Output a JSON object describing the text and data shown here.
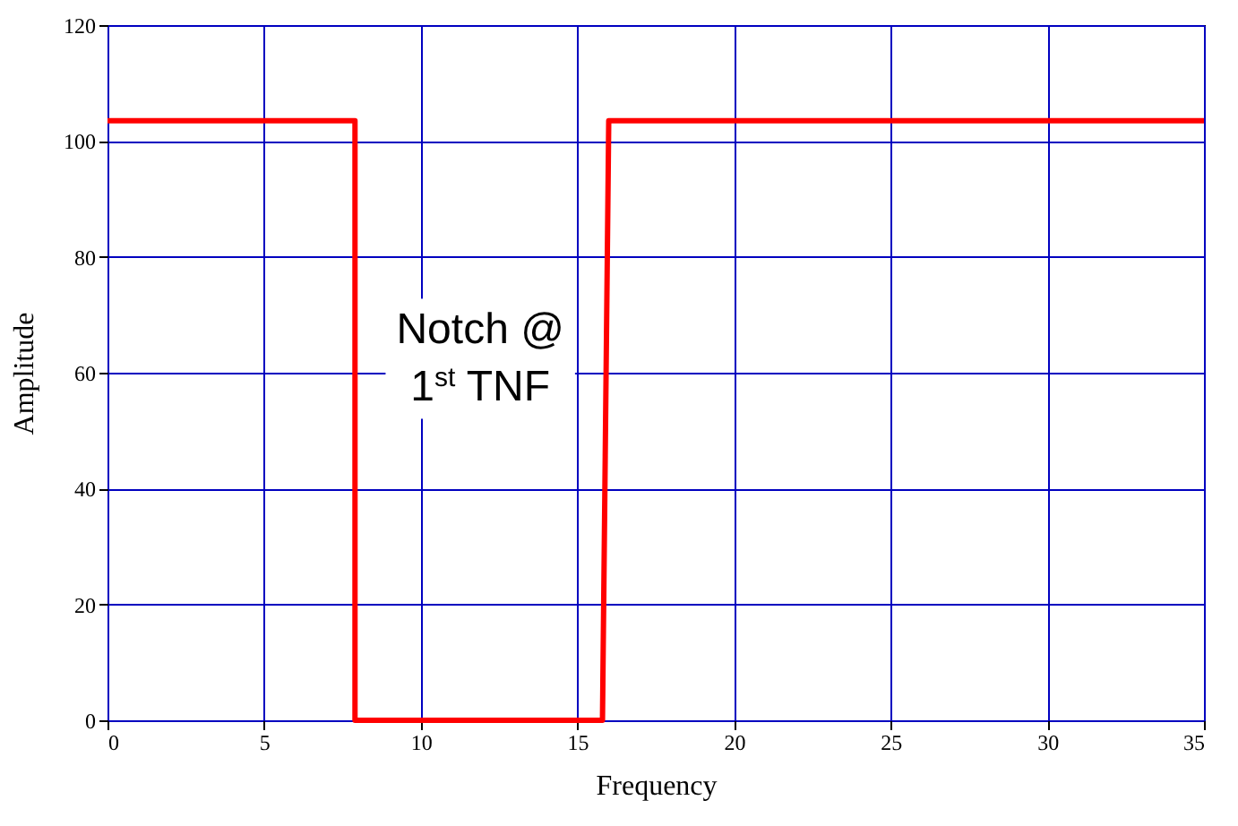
{
  "chart_data": {
    "type": "line",
    "xlabel": "Frequency",
    "ylabel": "Amplitude",
    "x": [
      0,
      7.9,
      7.9,
      15.8,
      16,
      35
    ],
    "series": [
      {
        "color": "#ff0000",
        "values": [
          103.5,
          103.5,
          0,
          0,
          103.5,
          103.5
        ]
      }
    ],
    "xlim": [
      0,
      35
    ],
    "xticks": [
      0,
      5,
      10,
      15,
      20,
      25,
      30,
      35
    ],
    "ylim": [
      0,
      120
    ],
    "yticks": [
      0,
      20,
      40,
      60,
      80,
      100,
      120
    ],
    "grid": true,
    "marker": "none",
    "line_style": "solid",
    "annotations": [
      "Notch @\n1$^{st}$ TNF"
    ]
  }
}
